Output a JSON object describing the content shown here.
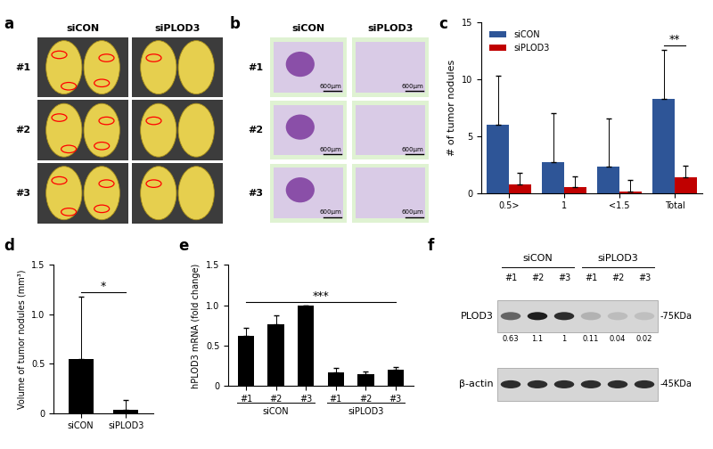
{
  "panel_labels": [
    "a",
    "b",
    "c",
    "d",
    "e",
    "f"
  ],
  "images": [
    {
      "columns": [
        "siCON",
        "siPLOD3"
      ],
      "rows": [
        "#1",
        "#2",
        "#3"
      ]
    },
    {
      "columns": [
        "siCON",
        "siPLOD3"
      ],
      "rows": [
        "#1",
        "#2",
        "#3"
      ],
      "scale_bar": "600μm"
    }
  ],
  "chart_data": [
    {
      "type": "bar",
      "categories": [
        "0.5>",
        "1",
        "<1.5",
        "Total"
      ],
      "y_label": "# of tumor nodules",
      "ylim": [
        0,
        15
      ],
      "yticks": [
        0,
        5,
        10,
        15
      ],
      "legend": "upper left",
      "series": [
        {
          "name": "siCON",
          "color": "#2e5597",
          "values": [
            6.0,
            2.75,
            2.3,
            8.3
          ],
          "errors": [
            4.3,
            4.3,
            4.25,
            4.25
          ]
        },
        {
          "name": "siPLOD3",
          "color": "#c00000",
          "values": [
            0.75,
            0.5,
            0.15,
            1.35
          ],
          "errors": [
            1.05,
            1.0,
            1.0,
            1.05
          ]
        }
      ],
      "significance": {
        "text": "**",
        "category": "Total"
      }
    },
    {
      "type": "bar",
      "categories": [
        "siCON",
        "siPLOD3"
      ],
      "values": [
        0.55,
        0.03
      ],
      "errors": [
        0.63,
        0.1
      ],
      "color": "#000000",
      "y_label": "Volume of tumor nodules (mm³)",
      "ylim": [
        0,
        1.5
      ],
      "yticks": [
        0,
        0.5,
        1.0,
        1.5
      ],
      "significance": {
        "text": "*"
      }
    },
    {
      "type": "bar",
      "categories": [
        "#1",
        "#2",
        "#3",
        "#1",
        "#2",
        "#3"
      ],
      "groups": [
        "siCON",
        "siPLOD3"
      ],
      "values": [
        0.62,
        0.76,
        1.0,
        0.17,
        0.15,
        0.2
      ],
      "errors": [
        0.1,
        0.12,
        0.0,
        0.05,
        0.03,
        0.04
      ],
      "color": "#000000",
      "y_label": "hPLOD3 mRNA (fold change)",
      "ylim": [
        0,
        1.5
      ],
      "yticks": [
        0,
        0.5,
        1.0,
        1.5
      ],
      "significance": {
        "text": "***"
      }
    }
  ],
  "blot": {
    "groups": [
      {
        "name": "siCON",
        "lanes": [
          "#1",
          "#2",
          "#3"
        ]
      },
      {
        "name": "siPLOD3",
        "lanes": [
          "#1",
          "#2",
          "#3"
        ]
      }
    ],
    "rows": [
      {
        "label": "PLOD3",
        "size": "-75KDa",
        "values": [
          0.63,
          1.1,
          1,
          0.11,
          0.04,
          0.02
        ]
      },
      {
        "label": "β-actin",
        "size": "-45KDa"
      }
    ]
  }
}
